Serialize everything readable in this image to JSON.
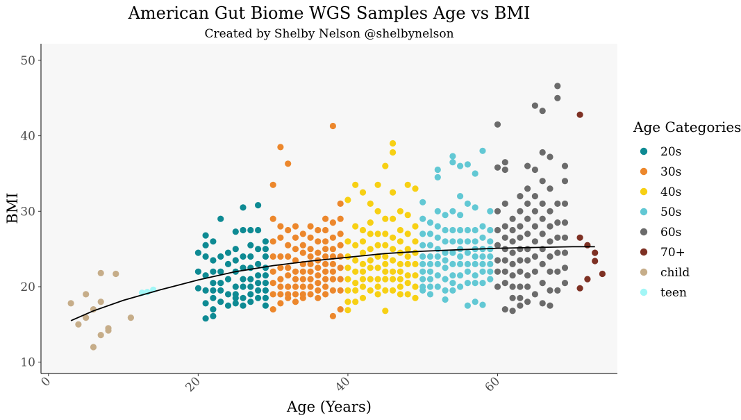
{
  "chart_data": {
    "type": "scatter",
    "title": "American Gut Biome WGS Samples Age vs BMI",
    "subtitle": "Created by Shelby Nelson @shelbynelson",
    "xlabel": "Age (Years)",
    "ylabel": "BMI",
    "xlim": [
      -1,
      76
    ],
    "ylim": [
      8.5,
      52.2
    ],
    "xticks": [
      0,
      20,
      40,
      60
    ],
    "yticks": [
      10,
      20,
      30,
      40,
      50
    ],
    "grid": false,
    "legend": {
      "title": "Age Categories",
      "position": "right",
      "entries": [
        {
          "label": "20s",
          "color": "#0E8A93"
        },
        {
          "label": "30s",
          "color": "#EC872C"
        },
        {
          "label": "40s",
          "color": "#F7D014"
        },
        {
          "label": "50s",
          "color": "#62C8D4"
        },
        {
          "label": "60s",
          "color": "#6B6B6B"
        },
        {
          "label": "70+",
          "color": "#7E3124"
        },
        {
          "label": "child",
          "color": "#C6AD89"
        },
        {
          "label": "teen",
          "color": "#A2F6F6"
        }
      ]
    },
    "series": [
      {
        "name": "child",
        "x": [
          3,
          4,
          5,
          5,
          6,
          6,
          7,
          7,
          7,
          8,
          8,
          9,
          11
        ],
        "y": [
          17.8,
          15.0,
          19.0,
          15.9,
          12.0,
          17.0,
          21.8,
          18.0,
          13.6,
          14.2,
          14.5,
          21.7,
          15.9
        ]
      },
      {
        "name": "teen",
        "x": [
          12.5,
          13.2,
          14.0
        ],
        "y": [
          19.2,
          19.3,
          19.6
        ]
      },
      {
        "name": "20s",
        "x": [
          20,
          20,
          20,
          21,
          21,
          21,
          21,
          21,
          21,
          21,
          22,
          22,
          22,
          22,
          22,
          22,
          22,
          22,
          23,
          23,
          23,
          23,
          23,
          23,
          24,
          24,
          24,
          24,
          24,
          25,
          25,
          25,
          25,
          25,
          25,
          25,
          25,
          26,
          26,
          26,
          26,
          26,
          26,
          26,
          26,
          27,
          27,
          27,
          27,
          27,
          27,
          27,
          27,
          28,
          28,
          28,
          28,
          28,
          28,
          28,
          28,
          29,
          29,
          29,
          29,
          29,
          29,
          29,
          29,
          29
        ],
        "y": [
          24.5,
          22.0,
          19.8,
          26.8,
          25.5,
          24.0,
          21.5,
          19.5,
          17.8,
          15.8,
          23.5,
          22.0,
          20.5,
          19.5,
          18.5,
          17.0,
          16.1,
          26.0,
          29.0,
          24.0,
          22.0,
          20.5,
          19.5,
          18.0,
          24.5,
          23.0,
          21.0,
          19.0,
          17.5,
          27.3,
          25.0,
          23.5,
          22.0,
          20.0,
          19.0,
          18.5,
          17.8,
          30.5,
          27.5,
          24.0,
          22.5,
          21.0,
          20.0,
          18.5,
          17.5,
          27.5,
          25.5,
          24.0,
          22.5,
          21.0,
          20.0,
          19.0,
          18.0,
          30.8,
          27.5,
          25.0,
          23.0,
          21.5,
          20.5,
          19.5,
          18.5,
          26.0,
          25.0,
          24.0,
          22.5,
          21.5,
          20.5,
          19.5,
          18.5,
          17.5
        ]
      },
      {
        "name": "30s",
        "x": [
          30,
          30,
          30,
          30,
          30,
          30,
          30,
          30,
          31,
          31,
          31,
          31,
          31,
          31,
          31,
          31,
          31,
          32,
          32,
          32,
          32,
          32,
          32,
          32,
          32,
          32,
          33,
          33,
          33,
          33,
          33,
          33,
          33,
          33,
          33,
          34,
          34,
          34,
          34,
          34,
          34,
          34,
          34,
          34,
          35,
          35,
          35,
          35,
          35,
          35,
          35,
          35,
          35,
          36,
          36,
          36,
          36,
          36,
          36,
          36,
          36,
          36,
          37,
          37,
          37,
          37,
          37,
          37,
          37,
          37,
          37,
          37,
          38,
          38,
          38,
          38,
          38,
          38,
          38,
          38,
          38,
          38,
          39,
          39,
          39,
          39,
          39,
          39,
          39,
          39,
          39
        ],
        "y": [
          33.5,
          29.0,
          26.0,
          24.0,
          22.0,
          20.5,
          19.0,
          17.0,
          38.5,
          28.0,
          26.5,
          24.0,
          22.5,
          21.0,
          20.0,
          19.0,
          17.8,
          36.3,
          27.5,
          25.5,
          24.0,
          22.5,
          21.5,
          20.0,
          19.0,
          18.5,
          28.0,
          26.5,
          25.0,
          23.5,
          22.0,
          21.0,
          20.0,
          19.0,
          18.0,
          27.0,
          25.5,
          24.5,
          23.0,
          22.0,
          21.0,
          20.0,
          19.0,
          18.5,
          28.0,
          26.5,
          25.0,
          24.0,
          23.0,
          22.0,
          21.0,
          20.0,
          19.0,
          27.5,
          26.0,
          24.5,
          23.5,
          22.5,
          21.5,
          20.5,
          19.5,
          18.5,
          29.0,
          27.5,
          26.0,
          25.0,
          24.0,
          23.0,
          22.0,
          21.0,
          20.0,
          19.0,
          41.3,
          28.5,
          26.5,
          25.0,
          24.0,
          23.0,
          22.0,
          21.0,
          19.5,
          16.1,
          31.0,
          29.0,
          27.0,
          25.5,
          24.0,
          22.5,
          21.0,
          19.5,
          17.0
        ]
      },
      {
        "name": "40s",
        "x": [
          40,
          40,
          40,
          40,
          40,
          40,
          40,
          40,
          41,
          41,
          41,
          41,
          41,
          41,
          41,
          41,
          42,
          42,
          42,
          42,
          42,
          42,
          42,
          42,
          42,
          43,
          43,
          43,
          43,
          43,
          43,
          43,
          43,
          44,
          44,
          44,
          44,
          44,
          44,
          44,
          44,
          44,
          45,
          45,
          45,
          45,
          45,
          45,
          45,
          45,
          45,
          45,
          46,
          46,
          46,
          46,
          46,
          46,
          46,
          46,
          46,
          46,
          47,
          47,
          47,
          47,
          47,
          47,
          47,
          47,
          47,
          48,
          48,
          48,
          48,
          48,
          48,
          48,
          48,
          48,
          49,
          49,
          49,
          49,
          49,
          49,
          49,
          49
        ],
        "y": [
          31.5,
          26.0,
          24.0,
          22.5,
          21.0,
          19.5,
          18.0,
          16.9,
          33.5,
          28.0,
          25.5,
          23.5,
          22.0,
          20.5,
          19.5,
          18.0,
          32.5,
          27.5,
          26.0,
          24.5,
          23.0,
          22.0,
          21.0,
          20.0,
          18.5,
          31.0,
          28.5,
          27.0,
          25.0,
          23.5,
          22.5,
          21.0,
          19.5,
          33.5,
          30.0,
          27.0,
          25.5,
          24.0,
          22.5,
          21.0,
          20.0,
          19.0,
          36.0,
          29.0,
          27.0,
          25.5,
          24.0,
          23.0,
          22.0,
          21.0,
          19.5,
          16.8,
          39.0,
          37.8,
          32.5,
          29.0,
          26.5,
          25.0,
          23.5,
          22.0,
          21.0,
          19.5,
          30.0,
          27.5,
          26.0,
          24.5,
          23.0,
          22.0,
          21.0,
          20.0,
          19.0,
          33.5,
          29.5,
          27.0,
          25.0,
          24.0,
          23.0,
          21.5,
          20.5,
          19.0,
          33.0,
          28.0,
          26.0,
          24.5,
          23.0,
          21.5,
          20.0,
          18.5
        ]
      },
      {
        "name": "50s",
        "x": [
          50,
          50,
          50,
          50,
          50,
          50,
          50,
          50,
          50,
          50,
          51,
          51,
          51,
          51,
          51,
          51,
          51,
          51,
          51,
          52,
          52,
          52,
          52,
          52,
          52,
          52,
          52,
          52,
          52,
          53,
          53,
          53,
          53,
          53,
          53,
          53,
          53,
          53,
          54,
          54,
          54,
          54,
          54,
          54,
          54,
          54,
          54,
          54,
          55,
          55,
          55,
          55,
          55,
          55,
          55,
          55,
          55,
          55,
          56,
          56,
          56,
          56,
          56,
          56,
          56,
          56,
          56,
          57,
          57,
          57,
          57,
          57,
          57,
          57,
          57,
          57,
          57,
          58,
          58,
          58,
          58,
          58,
          58,
          58,
          58,
          58,
          59,
          59,
          59,
          59,
          59,
          59,
          59,
          59
        ],
        "y": [
          31.2,
          29.0,
          27.0,
          25.5,
          24.0,
          23.0,
          22.0,
          21.0,
          20.0,
          19.5,
          28.5,
          27.0,
          25.5,
          24.0,
          23.0,
          22.0,
          21.0,
          20.0,
          19.0,
          35.5,
          34.5,
          30.0,
          28.0,
          26.5,
          25.0,
          24.0,
          23.0,
          21.5,
          20.0,
          29.5,
          27.5,
          26.0,
          24.5,
          23.5,
          22.5,
          21.0,
          19.5,
          18.3,
          37.3,
          36.5,
          30.0,
          27.5,
          26.0,
          24.5,
          23.0,
          21.5,
          20.5,
          19.5,
          36.0,
          32.0,
          29.5,
          27.5,
          26.0,
          25.0,
          24.0,
          23.0,
          21.5,
          20.0,
          36.2,
          31.0,
          27.5,
          26.0,
          24.5,
          23.0,
          22.0,
          20.5,
          17.5,
          35.0,
          30.5,
          27.5,
          26.0,
          25.0,
          24.0,
          23.0,
          21.5,
          20.5,
          18.0,
          38.0,
          28.0,
          26.5,
          25.0,
          24.0,
          23.0,
          22.0,
          20.5,
          17.6,
          30.0,
          27.5,
          26.0,
          25.0,
          24.0,
          23.0,
          22.0,
          21.0
        ]
      },
      {
        "name": "60s",
        "x": [
          60,
          60,
          60,
          60,
          60,
          60,
          60,
          60,
          61,
          61,
          61,
          61,
          61,
          61,
          61,
          61,
          61,
          61,
          62,
          62,
          62,
          62,
          62,
          62,
          62,
          62,
          62,
          63,
          63,
          63,
          63,
          63,
          63,
          63,
          63,
          63,
          63,
          64,
          64,
          64,
          64,
          64,
          64,
          64,
          64,
          64,
          64,
          65,
          65,
          65,
          65,
          65,
          65,
          65,
          65,
          65,
          66,
          66,
          66,
          66,
          66,
          66,
          66,
          66,
          66,
          66,
          67,
          67,
          67,
          67,
          67,
          67,
          67,
          67,
          67,
          68,
          68,
          68,
          68,
          68,
          68,
          68,
          68,
          69,
          69,
          69,
          69,
          69,
          69,
          69,
          69
        ],
        "y": [
          41.5,
          35.8,
          30.0,
          27.5,
          25.5,
          23.5,
          22.0,
          20.0,
          36.5,
          35.5,
          31.0,
          28.0,
          26.5,
          25.0,
          23.5,
          22.0,
          20.5,
          17.0,
          29.0,
          27.5,
          26.0,
          24.5,
          23.0,
          21.5,
          20.0,
          18.5,
          16.8,
          32.0,
          30.0,
          28.0,
          26.5,
          25.0,
          23.5,
          22.0,
          20.0,
          18.5,
          17.5,
          36.0,
          33.0,
          31.0,
          29.0,
          27.0,
          25.0,
          23.5,
          21.5,
          20.0,
          18.0,
          44.0,
          35.5,
          32.0,
          30.0,
          28.0,
          26.0,
          24.0,
          22.0,
          19.0,
          43.3,
          37.8,
          34.0,
          31.0,
          29.0,
          27.0,
          25.0,
          23.0,
          20.5,
          17.8,
          37.2,
          33.0,
          30.0,
          28.0,
          26.0,
          24.0,
          22.0,
          19.5,
          17.5,
          46.6,
          45.0,
          31.0,
          28.5,
          26.5,
          24.5,
          22.0,
          19.5,
          36.0,
          34.0,
          31.0,
          28.5,
          26.5,
          24.5,
          22.5,
          20.5
        ]
      },
      {
        "name": "70+",
        "x": [
          71,
          71,
          71,
          72,
          72,
          73,
          73,
          74
        ],
        "y": [
          42.8,
          26.5,
          19.8,
          25.5,
          21.0,
          24.5,
          23.4,
          21.7
        ]
      }
    ],
    "trend_line": {
      "color": "#000000",
      "x": [
        3,
        6,
        10,
        15,
        20,
        25,
        30,
        35,
        40,
        45,
        50,
        55,
        60,
        65,
        70,
        73
      ],
      "y": [
        15.5,
        16.8,
        18.2,
        19.6,
        20.9,
        22.0,
        22.8,
        23.4,
        23.9,
        24.4,
        24.7,
        24.9,
        25.1,
        25.2,
        25.3,
        25.3
      ]
    }
  }
}
